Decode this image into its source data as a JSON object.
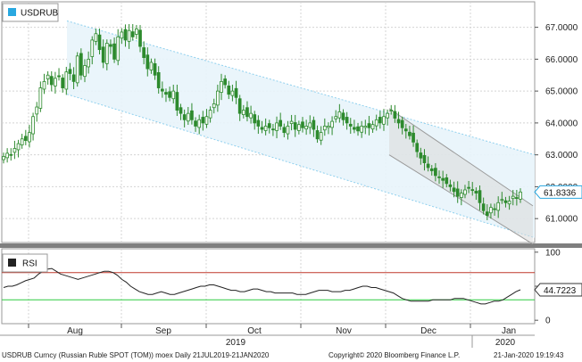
{
  "chart_data": [
    {
      "type": "candlestick",
      "legend": {
        "label": "USDRUB",
        "color": "#29a8e0",
        "placement": "top-left"
      },
      "y_ticks": [
        "67.0000",
        "66.0000",
        "65.0000",
        "64.0000",
        "63.0000",
        "62.0000",
        "61.0000"
      ],
      "y_tick_values": [
        67,
        66,
        65,
        64,
        63,
        62,
        61
      ],
      "ylim": [
        60.25,
        67.8
      ],
      "last_value": {
        "label": "61.8336",
        "value": 61.8336
      },
      "channel_main": {
        "upper_start": 67.2,
        "upper_end": 63.0,
        "lower_start": 64.9,
        "lower_end": 60.4
      },
      "channel_second": {
        "upper_start": 64.45,
        "upper_end": 61.4,
        "lower_start": 63.0,
        "lower_end": 60.2
      },
      "x_ticks": [
        "Aug",
        "Sep",
        "Oct",
        "Nov",
        "Dec",
        "Jan"
      ],
      "year_labels": [
        "2019",
        "2020"
      ],
      "candles_close": [
        62.95,
        63.05,
        63.0,
        63.2,
        63.35,
        63.5,
        63.45,
        63.7,
        64.2,
        64.5,
        65.1,
        65.3,
        65.5,
        65.2,
        65.4,
        65.45,
        65.1,
        65.6,
        65.55,
        65.3,
        66.1,
        65.5,
        65.8,
        66.0,
        66.6,
        66.8,
        66.3,
        65.9,
        66.5,
        66.4,
        66.0,
        66.7,
        66.85,
        66.6,
        66.9,
        66.7,
        66.95,
        66.4,
        66.05,
        65.7,
        65.9,
        65.5,
        65.1,
        65.0,
        64.9,
        64.8,
        65.0,
        64.4,
        64.3,
        64.1,
        64.3,
        64.1,
        63.9,
        64.1,
        64.0,
        64.2,
        64.4,
        64.6,
        65.0,
        65.3,
        65.2,
        64.9,
        65.0,
        64.8,
        64.3,
        64.4,
        64.2,
        64.3,
        64.0,
        63.9,
        63.8,
        63.9,
        63.85,
        63.8,
        64.0,
        63.9,
        63.7,
        63.9,
        64.05,
        63.8,
        63.95,
        63.85,
        63.9,
        64.0,
        63.8,
        63.5,
        63.7,
        63.9,
        63.9,
        64.05,
        64.2,
        64.35,
        64.1,
        64.0,
        63.9,
        63.8,
        63.75,
        63.9,
        63.9,
        63.85,
        63.95,
        64.1,
        64.0,
        64.2,
        64.3,
        64.4,
        64.15,
        64.0,
        63.85,
        63.75,
        63.6,
        63.4,
        63.1,
        62.9,
        62.75,
        62.6,
        62.5,
        62.35,
        62.3,
        62.2,
        62.1,
        62.0,
        61.85,
        61.7,
        61.8,
        61.9,
        61.95,
        61.9,
        61.8,
        61.5,
        61.25,
        61.1,
        61.35,
        61.3,
        61.5,
        61.6,
        61.5,
        61.55,
        61.7,
        61.65,
        61.8336
      ],
      "source_label": "USDRUB Curncy (Russian Ruble SPOT (TOM)) moex  Daily 21JUL2019-21JAN2020",
      "copyright": "Copyright© 2020 Bloomberg Finance L.P.",
      "timestamp": "21-Jan-2020 19:19:43"
    },
    {
      "type": "line",
      "legend": {
        "label": "RSI",
        "color": "#222222",
        "placement": "top-left"
      },
      "y_ticks": [
        "100",
        "50",
        "0"
      ],
      "y_tick_values": [
        100,
        50,
        0
      ],
      "ylim": [
        -5,
        105
      ],
      "upper_level": 70,
      "lower_level": 30,
      "last_value": {
        "label": "44.7223",
        "value": 44.7223
      },
      "values": [
        48,
        50,
        50,
        52,
        55,
        58,
        60,
        62,
        68,
        72,
        75,
        76,
        72,
        68,
        66,
        64,
        62,
        60,
        62,
        64,
        66,
        68,
        70,
        72,
        72,
        70,
        66,
        60,
        56,
        50,
        46,
        42,
        40,
        38,
        38,
        40,
        42,
        40,
        38,
        38,
        40,
        42,
        44,
        46,
        48,
        50,
        50,
        52,
        52,
        50,
        48,
        46,
        44,
        44,
        42,
        42,
        44,
        46,
        46,
        44,
        42,
        42,
        40,
        40,
        40,
        40,
        40,
        38,
        38,
        38,
        40,
        42,
        44,
        44,
        44,
        42,
        42,
        42,
        44,
        44,
        46,
        48,
        50,
        50,
        48,
        48,
        46,
        44,
        42,
        40,
        36,
        32,
        30,
        28,
        28,
        28,
        28,
        28,
        30,
        30,
        30,
        30,
        30,
        32,
        32,
        32,
        30,
        28,
        26,
        24,
        24,
        26,
        28,
        28,
        30,
        34,
        38,
        42,
        44.7223
      ]
    }
  ]
}
